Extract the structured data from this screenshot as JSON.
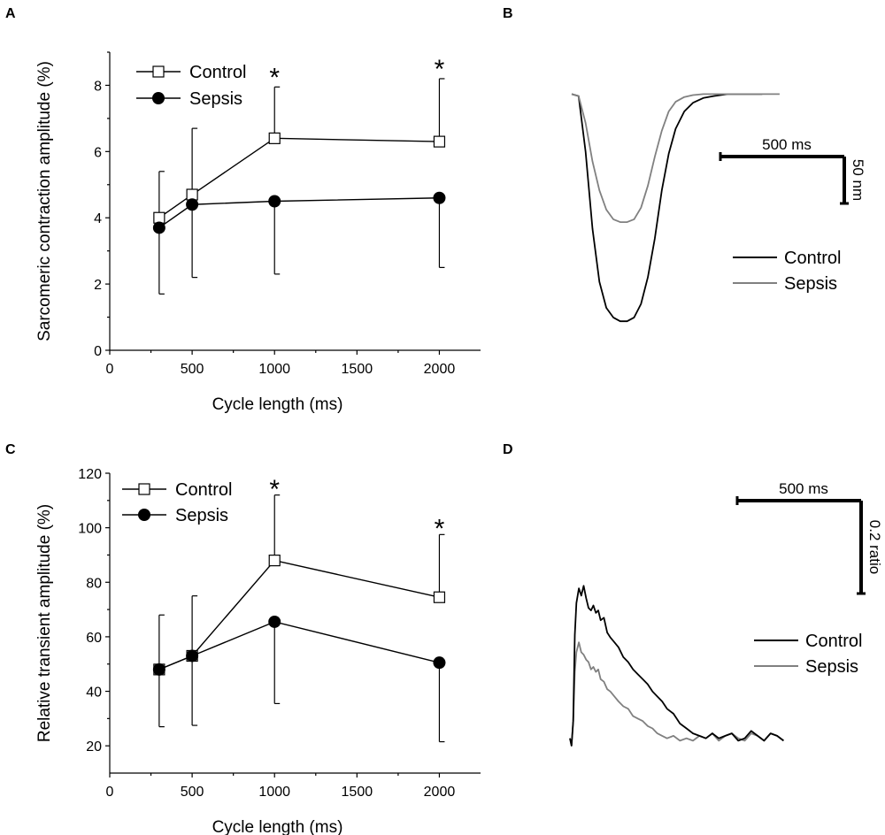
{
  "figure": {
    "panel_labels": [
      "A",
      "B",
      "C",
      "D"
    ]
  },
  "colors": {
    "control": "#000000",
    "sepsis": "#808080",
    "axis": "#000000"
  },
  "chart_data": [
    {
      "id": "A",
      "type": "line",
      "title": "",
      "xlabel": "Cycle length (ms)",
      "ylabel": "Sarcomeric contraction amplitude (%)",
      "xlim": [
        0,
        2250
      ],
      "ylim": [
        0,
        9
      ],
      "xticks": [
        0,
        500,
        1000,
        1500,
        2000
      ],
      "xtick_labels": [
        "0",
        "500",
        "1000",
        "1500",
        "2000"
      ],
      "yticks": [
        0,
        2,
        4,
        6,
        8
      ],
      "ytick_labels": [
        "0",
        "2",
        "4",
        "6",
        "8"
      ],
      "legend_position": "top-left",
      "x": [
        300,
        500,
        1000,
        2000
      ],
      "series": [
        {
          "name": "Control",
          "marker": "open-square",
          "values": [
            4.0,
            4.7,
            6.4,
            6.3
          ],
          "err_up": [
            1.4,
            2.0,
            1.55,
            1.9
          ],
          "err_down": [
            0,
            0,
            0,
            0
          ]
        },
        {
          "name": "Sepsis",
          "marker": "filled-circle",
          "values": [
            3.7,
            4.4,
            4.5,
            4.6
          ],
          "err_up": [
            0,
            0,
            0,
            0
          ],
          "err_down": [
            2.0,
            2.2,
            2.2,
            2.1
          ]
        }
      ],
      "annotations": [
        {
          "text": "*",
          "x": 1000,
          "y": 8.35
        },
        {
          "text": "*",
          "x": 2000,
          "y": 8.6
        }
      ]
    },
    {
      "id": "B",
      "type": "line",
      "title": "",
      "xlim": [
        0,
        1400
      ],
      "ylim": [
        -245,
        5
      ],
      "series": [
        {
          "name": "Control",
          "x": [
            0,
            40,
            80,
            120,
            160,
            200,
            240,
            280,
            320,
            360,
            400,
            440,
            480,
            520,
            560,
            600,
            650,
            700,
            760,
            820,
            900,
            1000,
            1100
          ],
          "values": [
            0,
            -2,
            -60,
            -140,
            -195,
            -222,
            -232,
            -236,
            -236,
            -232,
            -218,
            -190,
            -150,
            -100,
            -62,
            -36,
            -18,
            -9,
            -4,
            -2,
            0,
            0,
            0
          ]
        },
        {
          "name": "Sepsis",
          "x": [
            0,
            40,
            80,
            120,
            160,
            200,
            240,
            280,
            320,
            360,
            400,
            440,
            480,
            520,
            560,
            600,
            650,
            700,
            760,
            820,
            900,
            1000,
            1100,
            1200
          ],
          "values": [
            0,
            -2,
            -30,
            -70,
            -100,
            -120,
            -130,
            -133,
            -133,
            -130,
            -118,
            -95,
            -65,
            -38,
            -18,
            -8,
            -3,
            -1,
            0,
            0,
            0,
            0,
            0,
            0
          ]
        }
      ],
      "scale_bar": {
        "time_label": "500 ms",
        "time_ms": 500,
        "amp_label": "50 nm",
        "amp_nm": 50
      }
    },
    {
      "id": "C",
      "type": "line",
      "title": "",
      "xlabel": "Cycle length (ms)",
      "ylabel": "Relative transient amplitude (%)",
      "xlim": [
        0,
        2250
      ],
      "ylim": [
        10,
        120
      ],
      "xticks": [
        0,
        500,
        1000,
        1500,
        2000
      ],
      "xtick_labels": [
        "0",
        "500",
        "1000",
        "1500",
        "2000"
      ],
      "yticks": [
        20,
        40,
        60,
        80,
        100,
        120
      ],
      "ytick_labels": [
        "20",
        "40",
        "60",
        "80",
        "100",
        "120"
      ],
      "legend_position": "top-left",
      "x": [
        300,
        500,
        1000,
        2000
      ],
      "series": [
        {
          "name": "Control",
          "marker": "open-square",
          "values": [
            48,
            53,
            88,
            74.5
          ],
          "err_up": [
            20,
            22,
            24,
            23
          ],
          "err_down": [
            0,
            0,
            0,
            0
          ]
        },
        {
          "name": "Sepsis",
          "marker": "filled-circle",
          "values": [
            48,
            53,
            65.5,
            50.5
          ],
          "err_up": [
            0,
            0,
            0,
            0
          ],
          "err_down": [
            21,
            25.5,
            30,
            29
          ]
        }
      ],
      "annotations": [
        {
          "text": "*",
          "x": 1000,
          "y": 115.5
        },
        {
          "text": "*",
          "x": 2000,
          "y": 101
        }
      ]
    },
    {
      "id": "D",
      "type": "line",
      "title": "",
      "xlim": [
        0,
        1400
      ],
      "ylim": [
        0,
        1
      ],
      "series": [
        {
          "name": "Control",
          "x": [
            0,
            10,
            20,
            30,
            40,
            55,
            70,
            85,
            100,
            115,
            130,
            145,
            160,
            175,
            190,
            210,
            230,
            250,
            275,
            300,
            330,
            360,
            390,
            420,
            450,
            480,
            510,
            540,
            570,
            600,
            640,
            680,
            720,
            760,
            800,
            840,
            880,
            920,
            960,
            1000,
            1040,
            1080,
            1120,
            1160,
            1200,
            1240,
            1280,
            1320
          ],
          "values": [
            0.03,
            0.0,
            0.1,
            0.45,
            0.58,
            0.64,
            0.61,
            0.65,
            0.6,
            0.56,
            0.55,
            0.57,
            0.54,
            0.55,
            0.51,
            0.52,
            0.46,
            0.44,
            0.42,
            0.4,
            0.36,
            0.34,
            0.31,
            0.29,
            0.27,
            0.25,
            0.22,
            0.2,
            0.18,
            0.15,
            0.13,
            0.09,
            0.07,
            0.05,
            0.04,
            0.03,
            0.05,
            0.03,
            0.04,
            0.05,
            0.02,
            0.03,
            0.06,
            0.04,
            0.02,
            0.05,
            0.04,
            0.02
          ]
        },
        {
          "name": "Sepsis",
          "x": [
            0,
            10,
            20,
            30,
            40,
            55,
            70,
            85,
            100,
            115,
            130,
            145,
            160,
            175,
            190,
            210,
            230,
            250,
            275,
            300,
            330,
            360,
            390,
            420,
            450,
            480,
            510,
            540,
            570,
            600,
            640,
            680,
            720,
            760,
            800,
            840,
            880,
            920,
            960,
            1000,
            1040,
            1080,
            1120,
            1160,
            1200,
            1240,
            1280,
            1320
          ],
          "values": [
            0.03,
            0.0,
            0.1,
            0.3,
            0.38,
            0.42,
            0.38,
            0.37,
            0.35,
            0.34,
            0.31,
            0.32,
            0.3,
            0.31,
            0.27,
            0.26,
            0.23,
            0.22,
            0.2,
            0.18,
            0.16,
            0.15,
            0.12,
            0.11,
            0.1,
            0.08,
            0.07,
            0.05,
            0.04,
            0.03,
            0.04,
            0.02,
            0.03,
            0.02,
            0.04,
            0.03,
            0.05,
            0.02,
            0.04,
            0.05,
            0.03,
            0.02,
            0.05,
            0.04,
            0.02,
            0.05,
            0.04,
            0.02
          ]
        }
      ],
      "scale_bar": {
        "time_label": "500 ms",
        "time_ms": 500,
        "amp_label": "0.2 ratio",
        "amp_ratio": 0.2
      }
    }
  ]
}
